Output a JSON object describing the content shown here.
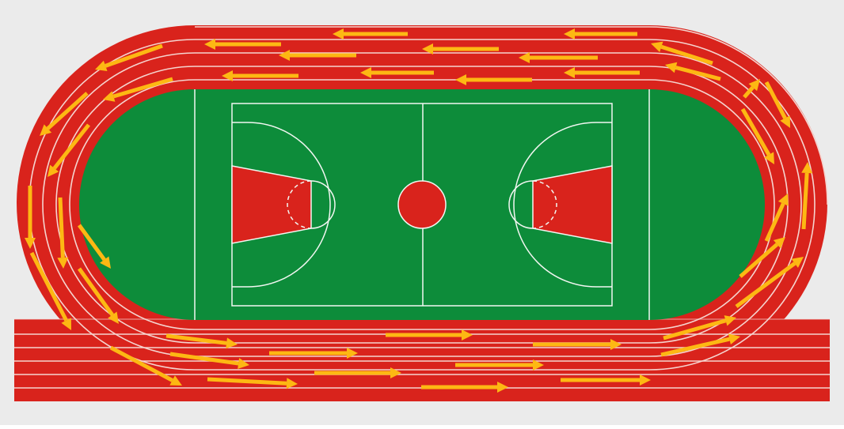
{
  "diagram": {
    "kind": "running-track-with-basketball-court",
    "track": {
      "lanes": 6,
      "straight_lanes": 5,
      "running_direction": "counter-clockwise"
    },
    "court": {
      "sport": "basketball"
    },
    "colors": {
      "background": "#ebebeb",
      "track": "#d9231c",
      "lane_line": "#f5d4cf",
      "field": "#0d8c3a",
      "court_line": "#f2f7f2",
      "paint": "#d9231c",
      "arrow": "#fdb813"
    }
  }
}
